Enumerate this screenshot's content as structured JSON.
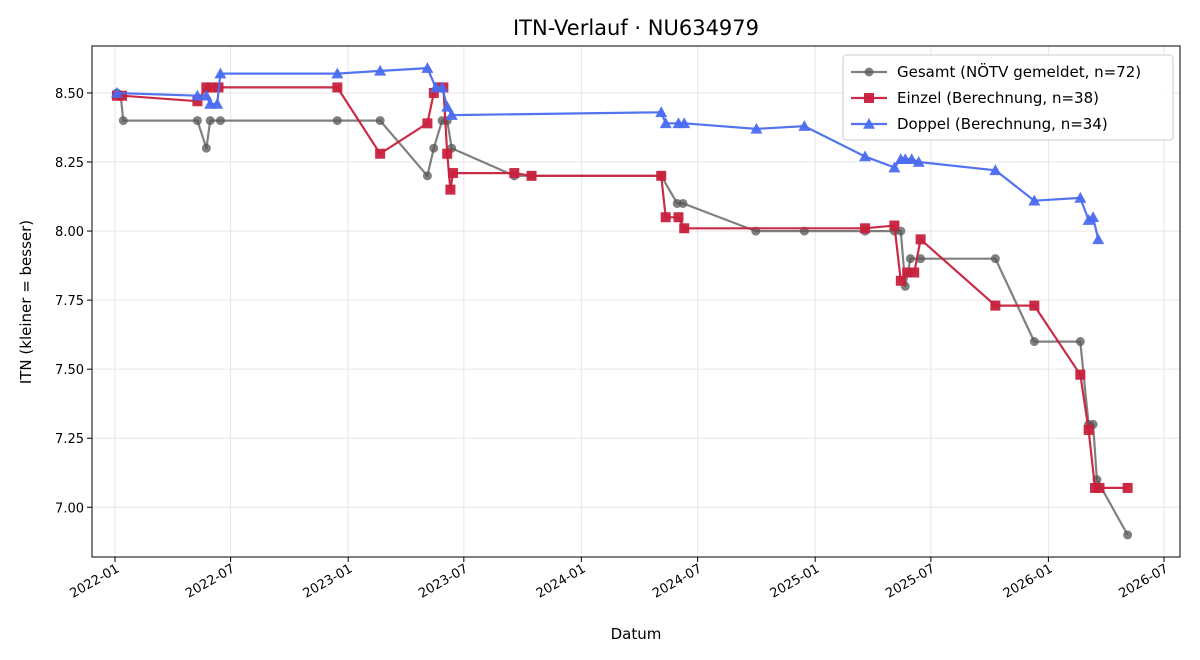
{
  "chart_data": {
    "type": "line",
    "title": "ITN-Verlauf · NU634979",
    "xlabel": "Datum",
    "ylabel": "ITN  (kleiner = besser)",
    "xlim": [
      "2021-11-26",
      "2026-07-26"
    ],
    "ylim": [
      6.82,
      8.67
    ],
    "x_ticks": [
      "2022-01",
      "2022-07",
      "2023-01",
      "2023-07",
      "2024-01",
      "2024-07",
      "2025-01",
      "2025-07",
      "2026-01",
      "2026-07"
    ],
    "y_ticks": [
      "7.00",
      "7.25",
      "7.50",
      "7.75",
      "8.00",
      "8.25",
      "8.50"
    ],
    "grid": true,
    "legend_position": "top-right",
    "series": [
      {
        "name": "Gesamt (NÖTV gemeldet, n=72)",
        "color": "#555555",
        "marker": "circle",
        "points": [
          [
            "2022-01-04",
            8.5
          ],
          [
            "2022-01-10",
            8.49
          ],
          [
            "2022-01-14",
            8.4
          ],
          [
            "2022-05-10",
            8.4
          ],
          [
            "2022-05-24",
            8.3
          ],
          [
            "2022-05-30",
            8.4
          ],
          [
            "2022-06-15",
            8.4
          ],
          [
            "2022-12-15",
            8.4
          ],
          [
            "2023-02-20",
            8.4
          ],
          [
            "2023-05-05",
            8.2
          ],
          [
            "2023-05-15",
            8.3
          ],
          [
            "2023-05-28",
            8.4
          ],
          [
            "2023-06-05",
            8.4
          ],
          [
            "2023-06-12",
            8.3
          ],
          [
            "2023-09-18",
            8.2
          ],
          [
            "2023-10-15",
            8.2
          ],
          [
            "2024-05-05",
            8.2
          ],
          [
            "2024-05-30",
            8.1
          ],
          [
            "2024-06-08",
            8.1
          ],
          [
            "2024-09-30",
            8.0
          ],
          [
            "2024-12-15",
            8.0
          ],
          [
            "2025-03-20",
            8.0
          ],
          [
            "2025-05-05",
            8.0
          ],
          [
            "2025-05-15",
            8.0
          ],
          [
            "2025-05-22",
            7.8
          ],
          [
            "2025-05-30",
            7.9
          ],
          [
            "2025-06-15",
            7.9
          ],
          [
            "2025-10-10",
            7.9
          ],
          [
            "2025-12-10",
            7.6
          ],
          [
            "2026-02-20",
            7.6
          ],
          [
            "2026-03-05",
            7.3
          ],
          [
            "2026-03-12",
            7.3
          ],
          [
            "2026-03-18",
            7.1
          ],
          [
            "2026-05-05",
            6.9
          ]
        ]
      },
      {
        "name": "Einzel (Berechnung, n=38)",
        "color": "#c8203c",
        "marker": "square",
        "points": [
          [
            "2022-01-04",
            8.49
          ],
          [
            "2022-01-12",
            8.49
          ],
          [
            "2022-05-10",
            8.47
          ],
          [
            "2022-05-24",
            8.52
          ],
          [
            "2022-06-01",
            8.52
          ],
          [
            "2022-06-12",
            8.52
          ],
          [
            "2022-12-15",
            8.52
          ],
          [
            "2023-02-20",
            8.28
          ],
          [
            "2023-05-05",
            8.39
          ],
          [
            "2023-05-15",
            8.5
          ],
          [
            "2023-05-22",
            8.52
          ],
          [
            "2023-05-30",
            8.52
          ],
          [
            "2023-06-05",
            8.28
          ],
          [
            "2023-06-10",
            8.15
          ],
          [
            "2023-06-14",
            8.21
          ],
          [
            "2023-09-18",
            8.21
          ],
          [
            "2023-10-15",
            8.2
          ],
          [
            "2024-05-05",
            8.2
          ],
          [
            "2024-05-12",
            8.05
          ],
          [
            "2024-06-01",
            8.05
          ],
          [
            "2024-06-10",
            8.01
          ],
          [
            "2025-03-20",
            8.01
          ],
          [
            "2025-05-05",
            8.02
          ],
          [
            "2025-05-15",
            7.82
          ],
          [
            "2025-05-25",
            7.85
          ],
          [
            "2025-06-05",
            7.85
          ],
          [
            "2025-06-15",
            7.97
          ],
          [
            "2025-10-10",
            7.73
          ],
          [
            "2025-12-10",
            7.73
          ],
          [
            "2026-02-20",
            7.48
          ],
          [
            "2026-03-05",
            7.28
          ],
          [
            "2026-03-15",
            7.07
          ],
          [
            "2026-03-22",
            7.07
          ],
          [
            "2026-05-05",
            7.07
          ]
        ]
      },
      {
        "name": "Doppel (Berechnung, n=34)",
        "color": "#4a6cf0",
        "marker": "triangle",
        "points": [
          [
            "2022-01-04",
            8.5
          ],
          [
            "2022-05-10",
            8.49
          ],
          [
            "2022-05-24",
            8.49
          ],
          [
            "2022-05-30",
            8.46
          ],
          [
            "2022-06-10",
            8.46
          ],
          [
            "2022-06-15",
            8.57
          ],
          [
            "2022-12-15",
            8.57
          ],
          [
            "2023-02-20",
            8.58
          ],
          [
            "2023-05-05",
            8.59
          ],
          [
            "2023-05-18",
            8.52
          ],
          [
            "2023-05-28",
            8.52
          ],
          [
            "2023-06-05",
            8.45
          ],
          [
            "2023-06-12",
            8.42
          ],
          [
            "2024-05-05",
            8.43
          ],
          [
            "2024-05-12",
            8.39
          ],
          [
            "2024-06-01",
            8.39
          ],
          [
            "2024-06-10",
            8.39
          ],
          [
            "2024-10-01",
            8.37
          ],
          [
            "2024-12-15",
            8.38
          ],
          [
            "2025-03-20",
            8.27
          ],
          [
            "2025-05-05",
            8.23
          ],
          [
            "2025-05-15",
            8.26
          ],
          [
            "2025-05-22",
            8.26
          ],
          [
            "2025-06-01",
            8.26
          ],
          [
            "2025-06-12",
            8.25
          ],
          [
            "2025-10-10",
            8.22
          ],
          [
            "2025-12-10",
            8.11
          ],
          [
            "2026-02-20",
            8.12
          ],
          [
            "2026-03-05",
            8.04
          ],
          [
            "2026-03-12",
            8.05
          ],
          [
            "2026-03-20",
            7.97
          ]
        ]
      }
    ]
  }
}
